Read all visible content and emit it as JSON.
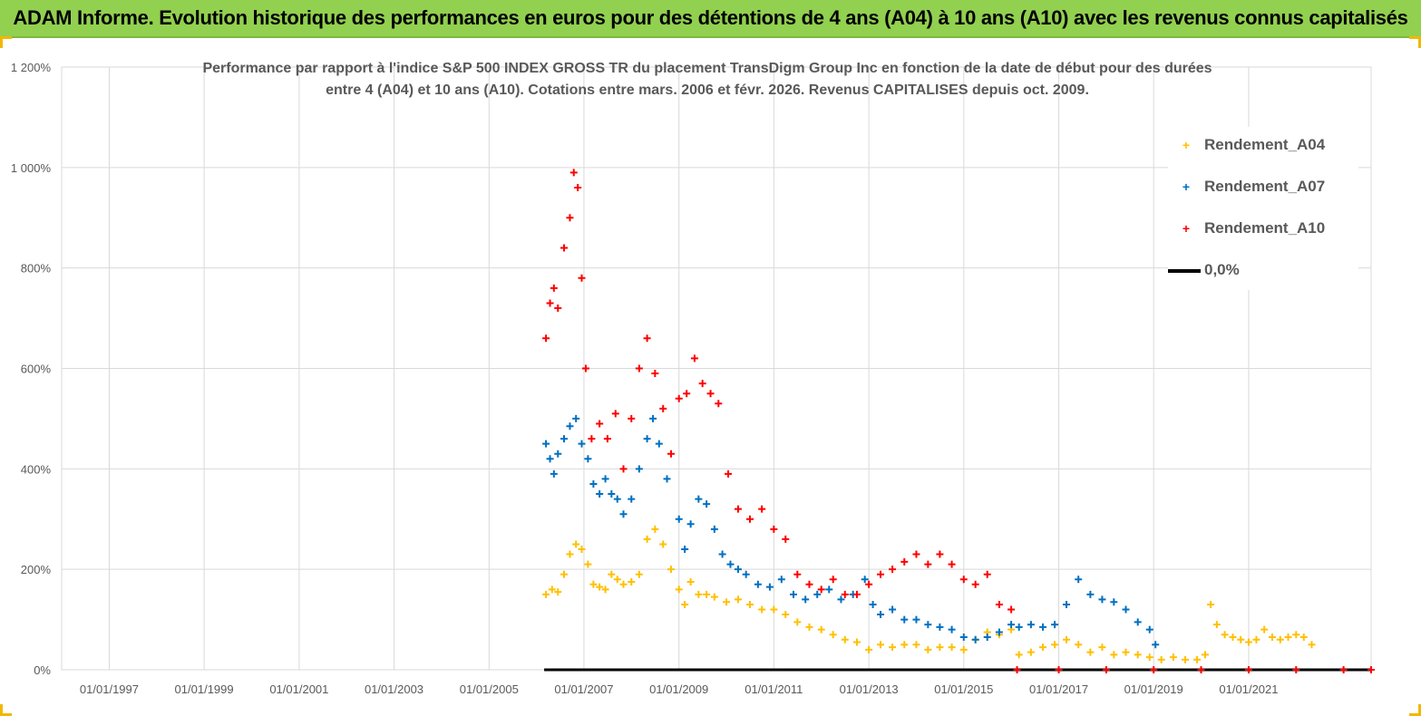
{
  "header": {
    "title": "ADAM Informe. Evolution historique des performances en euros pour des détentions de 4 ans (A04) à 10 ans (A10) avec les revenus connus capitalisés"
  },
  "chart_data": {
    "type": "scatter",
    "title_line1": "Performance par rapport à l'indice S&P 500 INDEX GROSS TR  du placement TransDigm Group Inc en fonction de la date de début pour des durées",
    "title_line2": "entre 4 (A04) et 10 ans (A10). Cotations entre mars. 2006 et févr. 2026. Revenus CAPITALISES depuis oct. 2009.",
    "x_tick_labels": [
      "01/01/1997",
      "01/01/1999",
      "01/01/2001",
      "01/01/2003",
      "01/01/2005",
      "01/01/2007",
      "01/01/2009",
      "01/01/2011",
      "01/01/2013",
      "01/01/2015",
      "01/01/2017",
      "01/01/2019",
      "01/01/2021"
    ],
    "y_tick_labels": [
      "0%",
      "200%",
      "400%",
      "600%",
      "800%",
      "1 000%",
      "1 200%"
    ],
    "xlim": [
      "1996-01-01",
      "2023-08-01"
    ],
    "ylim": [
      0,
      12
    ],
    "y_unit": "ratio (1 = 100%)",
    "grid": "vertical and horizontal",
    "legend_position": "top-right",
    "colors": {
      "A04": "#ffc000",
      "A07": "#0070c0",
      "A10": "#ff0000",
      "zero": "#000000"
    },
    "series": [
      {
        "name": "Rendement_A04",
        "points": [
          [
            "2006-03-15",
            1.5
          ],
          [
            "2006-05-01",
            1.6
          ],
          [
            "2006-06-15",
            1.55
          ],
          [
            "2006-08-01",
            1.9
          ],
          [
            "2006-09-15",
            2.3
          ],
          [
            "2006-11-01",
            2.5
          ],
          [
            "2006-12-15",
            2.4
          ],
          [
            "2007-02-01",
            2.1
          ],
          [
            "2007-03-15",
            1.7
          ],
          [
            "2007-05-01",
            1.65
          ],
          [
            "2007-06-15",
            1.6
          ],
          [
            "2007-08-01",
            1.9
          ],
          [
            "2007-09-15",
            1.8
          ],
          [
            "2007-11-01",
            1.7
          ],
          [
            "2008-01-01",
            1.75
          ],
          [
            "2008-03-01",
            1.9
          ],
          [
            "2008-05-01",
            2.6
          ],
          [
            "2008-07-01",
            2.8
          ],
          [
            "2008-09-01",
            2.5
          ],
          [
            "2008-11-01",
            2.0
          ],
          [
            "2009-01-01",
            1.6
          ],
          [
            "2009-02-15",
            1.3
          ],
          [
            "2009-04-01",
            1.75
          ],
          [
            "2009-06-01",
            1.5
          ],
          [
            "2009-08-01",
            1.5
          ],
          [
            "2009-10-01",
            1.45
          ],
          [
            "2010-01-01",
            1.35
          ],
          [
            "2010-04-01",
            1.4
          ],
          [
            "2010-07-01",
            1.3
          ],
          [
            "2010-10-01",
            1.2
          ],
          [
            "2011-01-01",
            1.2
          ],
          [
            "2011-04-01",
            1.1
          ],
          [
            "2011-07-01",
            0.95
          ],
          [
            "2011-10-01",
            0.85
          ],
          [
            "2012-01-01",
            0.8
          ],
          [
            "2012-04-01",
            0.7
          ],
          [
            "2012-07-01",
            0.6
          ],
          [
            "2012-10-01",
            0.55
          ],
          [
            "2013-01-01",
            0.4
          ],
          [
            "2013-04-01",
            0.5
          ],
          [
            "2013-07-01",
            0.45
          ],
          [
            "2013-10-01",
            0.5
          ],
          [
            "2014-01-01",
            0.5
          ],
          [
            "2014-04-01",
            0.4
          ],
          [
            "2014-07-01",
            0.45
          ],
          [
            "2014-10-01",
            0.45
          ],
          [
            "2015-01-01",
            0.4
          ],
          [
            "2015-04-01",
            0.6
          ],
          [
            "2015-07-01",
            0.75
          ],
          [
            "2015-10-01",
            0.7
          ],
          [
            "2016-01-01",
            0.8
          ],
          [
            "2016-03-01",
            0.3
          ],
          [
            "2016-06-01",
            0.35
          ],
          [
            "2016-09-01",
            0.45
          ],
          [
            "2016-12-01",
            0.5
          ],
          [
            "2017-03-01",
            0.6
          ],
          [
            "2017-06-01",
            0.5
          ],
          [
            "2017-09-01",
            0.35
          ],
          [
            "2017-12-01",
            0.45
          ],
          [
            "2018-03-01",
            0.3
          ],
          [
            "2018-06-01",
            0.35
          ],
          [
            "2018-09-01",
            0.3
          ],
          [
            "2018-12-01",
            0.25
          ],
          [
            "2019-03-01",
            0.2
          ],
          [
            "2019-06-01",
            0.25
          ],
          [
            "2019-09-01",
            0.2
          ],
          [
            "2019-12-01",
            0.2
          ],
          [
            "2020-02-01",
            0.3
          ],
          [
            "2020-03-15",
            1.3
          ],
          [
            "2020-05-01",
            0.9
          ],
          [
            "2020-07-01",
            0.7
          ],
          [
            "2020-09-01",
            0.65
          ],
          [
            "2020-11-01",
            0.6
          ],
          [
            "2021-01-01",
            0.55
          ],
          [
            "2021-03-01",
            0.6
          ],
          [
            "2021-05-01",
            0.8
          ],
          [
            "2021-07-01",
            0.65
          ],
          [
            "2021-09-01",
            0.6
          ],
          [
            "2021-11-01",
            0.65
          ],
          [
            "2022-01-01",
            0.7
          ],
          [
            "2022-03-01",
            0.65
          ],
          [
            "2022-05-01",
            0.5
          ]
        ]
      },
      {
        "name": "Rendement_A07",
        "points": [
          [
            "2006-03-15",
            4.5
          ],
          [
            "2006-04-15",
            4.2
          ],
          [
            "2006-05-15",
            3.9
          ],
          [
            "2006-06-15",
            4.3
          ],
          [
            "2006-08-01",
            4.6
          ],
          [
            "2006-09-15",
            4.85
          ],
          [
            "2006-11-01",
            5.0
          ],
          [
            "2006-12-15",
            4.5
          ],
          [
            "2007-02-01",
            4.2
          ],
          [
            "2007-03-15",
            3.7
          ],
          [
            "2007-05-01",
            3.5
          ],
          [
            "2007-06-15",
            3.8
          ],
          [
            "2007-08-01",
            3.5
          ],
          [
            "2007-09-15",
            3.4
          ],
          [
            "2007-11-01",
            3.1
          ],
          [
            "2008-01-01",
            3.4
          ],
          [
            "2008-03-01",
            4.0
          ],
          [
            "2008-05-01",
            4.6
          ],
          [
            "2008-06-15",
            5.0
          ],
          [
            "2008-08-01",
            4.5
          ],
          [
            "2008-10-01",
            3.8
          ],
          [
            "2009-01-01",
            3.0
          ],
          [
            "2009-02-15",
            2.4
          ],
          [
            "2009-04-01",
            2.9
          ],
          [
            "2009-06-01",
            3.4
          ],
          [
            "2009-08-01",
            3.3
          ],
          [
            "2009-10-01",
            2.8
          ],
          [
            "2009-12-01",
            2.3
          ],
          [
            "2010-02-01",
            2.1
          ],
          [
            "2010-04-01",
            2.0
          ],
          [
            "2010-06-01",
            1.9
          ],
          [
            "2010-09-01",
            1.7
          ],
          [
            "2010-12-01",
            1.65
          ],
          [
            "2011-03-01",
            1.8
          ],
          [
            "2011-06-01",
            1.5
          ],
          [
            "2011-09-01",
            1.4
          ],
          [
            "2011-12-01",
            1.5
          ],
          [
            "2012-03-01",
            1.6
          ],
          [
            "2012-06-01",
            1.4
          ],
          [
            "2012-09-01",
            1.5
          ],
          [
            "2012-12-01",
            1.8
          ],
          [
            "2013-02-01",
            1.3
          ],
          [
            "2013-04-01",
            1.1
          ],
          [
            "2013-07-01",
            1.2
          ],
          [
            "2013-10-01",
            1.0
          ],
          [
            "2014-01-01",
            1.0
          ],
          [
            "2014-04-01",
            0.9
          ],
          [
            "2014-07-01",
            0.85
          ],
          [
            "2014-10-01",
            0.8
          ],
          [
            "2015-01-01",
            0.65
          ],
          [
            "2015-04-01",
            0.6
          ],
          [
            "2015-07-01",
            0.65
          ],
          [
            "2015-10-01",
            0.75
          ],
          [
            "2016-01-01",
            0.9
          ],
          [
            "2016-03-01",
            0.85
          ],
          [
            "2016-06-01",
            0.9
          ],
          [
            "2016-09-01",
            0.85
          ],
          [
            "2016-12-01",
            0.9
          ],
          [
            "2017-03-01",
            1.3
          ],
          [
            "2017-06-01",
            1.8
          ],
          [
            "2017-09-01",
            1.5
          ],
          [
            "2017-12-01",
            1.4
          ],
          [
            "2018-03-01",
            1.35
          ],
          [
            "2018-06-01",
            1.2
          ],
          [
            "2018-09-01",
            0.95
          ],
          [
            "2018-12-01",
            0.8
          ],
          [
            "2019-01-15",
            0.5
          ]
        ]
      },
      {
        "name": "Rendement_A10",
        "points": [
          [
            "2006-03-15",
            6.6
          ],
          [
            "2006-04-15",
            7.3
          ],
          [
            "2006-05-15",
            7.6
          ],
          [
            "2006-06-15",
            7.2
          ],
          [
            "2006-08-01",
            8.4
          ],
          [
            "2006-09-15",
            9.0
          ],
          [
            "2006-10-15",
            9.9
          ],
          [
            "2006-11-15",
            9.6
          ],
          [
            "2006-12-15",
            7.8
          ],
          [
            "2007-01-15",
            6.0
          ],
          [
            "2007-03-01",
            4.6
          ],
          [
            "2007-05-01",
            4.9
          ],
          [
            "2007-07-01",
            4.6
          ],
          [
            "2007-09-01",
            5.1
          ],
          [
            "2007-11-01",
            4.0
          ],
          [
            "2008-01-01",
            5.0
          ],
          [
            "2008-03-01",
            6.0
          ],
          [
            "2008-05-01",
            6.6
          ],
          [
            "2008-07-01",
            5.9
          ],
          [
            "2008-09-01",
            5.2
          ],
          [
            "2008-11-01",
            4.3
          ],
          [
            "2009-01-01",
            5.4
          ],
          [
            "2009-03-01",
            5.5
          ],
          [
            "2009-05-01",
            6.2
          ],
          [
            "2009-07-01",
            5.7
          ],
          [
            "2009-09-01",
            5.5
          ],
          [
            "2009-11-01",
            5.3
          ],
          [
            "2010-01-15",
            3.9
          ],
          [
            "2010-04-01",
            3.2
          ],
          [
            "2010-07-01",
            3.0
          ],
          [
            "2010-10-01",
            3.2
          ],
          [
            "2011-01-01",
            2.8
          ],
          [
            "2011-04-01",
            2.6
          ],
          [
            "2011-07-01",
            1.9
          ],
          [
            "2011-10-01",
            1.7
          ],
          [
            "2012-01-01",
            1.6
          ],
          [
            "2012-04-01",
            1.8
          ],
          [
            "2012-07-01",
            1.5
          ],
          [
            "2012-10-01",
            1.5
          ],
          [
            "2013-01-01",
            1.7
          ],
          [
            "2013-04-01",
            1.9
          ],
          [
            "2013-07-01",
            2.0
          ],
          [
            "2013-10-01",
            2.15
          ],
          [
            "2014-01-01",
            2.3
          ],
          [
            "2014-04-01",
            2.1
          ],
          [
            "2014-07-01",
            2.3
          ],
          [
            "2014-10-01",
            2.1
          ],
          [
            "2015-01-01",
            1.8
          ],
          [
            "2015-04-01",
            1.7
          ],
          [
            "2015-07-01",
            1.9
          ],
          [
            "2015-10-01",
            1.3
          ],
          [
            "2016-01-01",
            1.2
          ],
          [
            "2016-02-15",
            0.0
          ],
          [
            "2017-01-01",
            0.0
          ],
          [
            "2018-01-01",
            0.0
          ],
          [
            "2019-01-01",
            0.0
          ],
          [
            "2020-01-01",
            0.0
          ],
          [
            "2021-01-01",
            0.0
          ],
          [
            "2022-01-01",
            0.0
          ],
          [
            "2023-01-01",
            0.0
          ],
          [
            "2023-08-01",
            0.0
          ]
        ]
      },
      {
        "name": "0,0%",
        "line": [
          [
            "2006-03-01",
            0.0
          ],
          [
            "2023-08-01",
            0.0
          ]
        ]
      }
    ]
  }
}
